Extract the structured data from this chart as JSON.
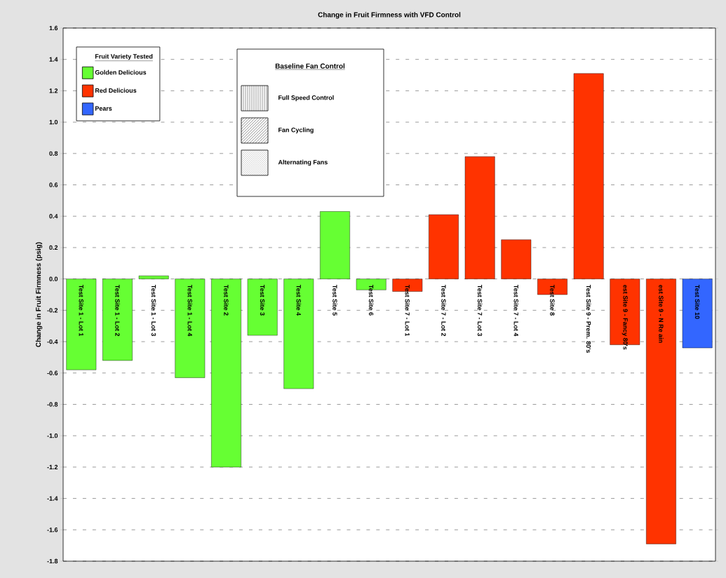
{
  "chart_data": {
    "type": "bar",
    "title": "Change in Fruit Firmness with VFD Control",
    "ylabel": "Change in Fruit Firmness (psig)",
    "categories": [
      "Test Site 1 - Lot 1",
      "Test Site 1 - Lot 2",
      "Test Site 1 - Lot 3",
      "Test Site 1 - Lot 4",
      "Test Site 2",
      "Test Site 3",
      "Test Site 4",
      "Test Site 5",
      "Test Site 6",
      "Test Site 7 - Lot 1",
      "Test Site 7 - Lot 2",
      "Test Site 7 - Lot 3",
      "Test Site 7 - Lot 4",
      "Test Site 8",
      "Test Site 9 - Prem. 80's",
      "est Site 9 - Fancy 80's",
      "est Site 9 - N  Re ain",
      "Test Site 10"
    ],
    "series": [
      {
        "name": "Golden Delicious",
        "color": "#66ff33",
        "values": [
          -0.58,
          -0.52,
          0.02,
          -0.63,
          -1.2,
          -0.36,
          -0.7,
          0.43,
          -0.07,
          null,
          null,
          null,
          null,
          null,
          null,
          null,
          null,
          null
        ]
      },
      {
        "name": "Red Delicious",
        "color": "#ff3300",
        "values": [
          null,
          null,
          null,
          null,
          null,
          null,
          null,
          null,
          null,
          -0.08,
          0.41,
          0.78,
          0.25,
          -0.1,
          1.31,
          -0.42,
          -1.69,
          null
        ]
      },
      {
        "name": "Pears",
        "color": "#3366ff",
        "values": [
          null,
          null,
          null,
          null,
          null,
          null,
          null,
          null,
          null,
          null,
          null,
          null,
          null,
          null,
          null,
          null,
          null,
          -0.44
        ]
      }
    ],
    "legend_title": "Fruit Variety Tested",
    "legend": "top left",
    "annotations": [
      "Baseline Fan Control",
      "Full Speed Control",
      "Fan Cycling",
      "Alternating Fans"
    ],
    "ylim": [
      -1.8,
      1.6
    ],
    "yticks": [
      {
        "value": -1.8,
        "label": "-1.8"
      },
      {
        "value": -1.6,
        "label": "-1.6"
      },
      {
        "value": -1.4,
        "label": "-1.4"
      },
      {
        "value": -1.2,
        "label": "-1.2"
      },
      {
        "value": -1.0,
        "label": "-1.0"
      },
      {
        "value": -0.8,
        "label": "-0.8"
      },
      {
        "value": -0.6,
        "label": "-0.6"
      },
      {
        "value": -0.4,
        "label": "-0.4"
      },
      {
        "value": -0.2,
        "label": "-0.2"
      },
      {
        "value": 0,
        "label": "0.0"
      },
      {
        "value": 0.2,
        "label": "0.2"
      },
      {
        "value": 0.4,
        "label": "0.4"
      },
      {
        "value": 0.6,
        "label": "0.6"
      },
      {
        "value": 0.8,
        "label": "0.8"
      },
      {
        "value": 1.0,
        "label": "1.0"
      },
      {
        "value": 1.2,
        "label": "1.2"
      },
      {
        "value": 1.4,
        "label": "1.4"
      },
      {
        "value": 1.6,
        "label": "1.6"
      }
    ],
    "grid": true
  }
}
